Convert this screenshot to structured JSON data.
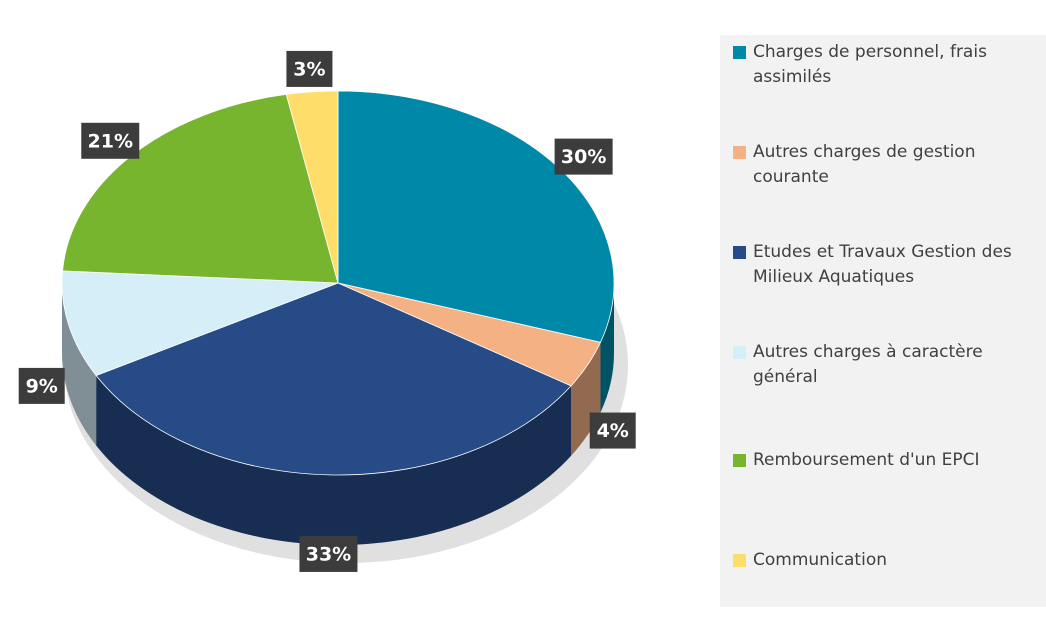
{
  "chart_data": {
    "type": "pie",
    "categories": [
      "Charges de personnel, frais assimilés",
      "Autres charges de gestion courante",
      "Etudes et Travaux Gestion des Milieux Aquatiques",
      "Autres charges à caractère général",
      "Remboursement d'un EPCI",
      "Communication"
    ],
    "values": [
      30,
      4,
      33,
      9,
      21,
      3
    ],
    "value_labels": [
      "30%",
      "4%",
      "33%",
      "9%",
      "21%",
      "3%"
    ],
    "colors": [
      "#0088a8",
      "#f4b183",
      "#264b87",
      "#d6eef8",
      "#77b52f",
      "#fedd6a"
    ]
  }
}
